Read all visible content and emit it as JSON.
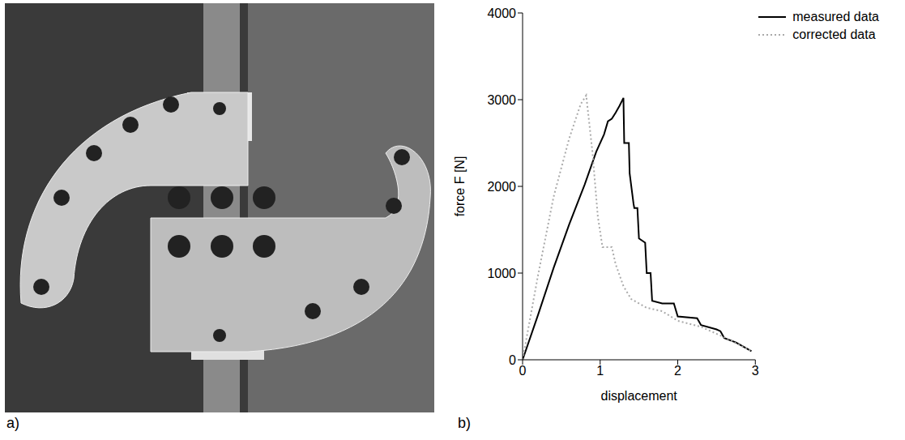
{
  "photo_panel": {
    "label": "a)"
  },
  "chart_panel_label": "b)",
  "chart_data": {
    "type": "line",
    "x_label": "displacement",
    "y_label": "force F [N]",
    "xlim": [
      0,
      3
    ],
    "xticks": [
      0,
      1,
      2,
      3
    ],
    "ylim": [
      0,
      4000
    ],
    "yticks": [
      0,
      1000,
      2000,
      3000,
      4000
    ],
    "grid": false,
    "legend": "upper right",
    "series": [
      {
        "name": "measured data",
        "color": "#000000",
        "line_style": "solid",
        "x": [
          0,
          0.2,
          0.4,
          0.6,
          0.8,
          0.95,
          1.05,
          1.1,
          1.15,
          1.2,
          1.25,
          1.3,
          1.31,
          1.37,
          1.38,
          1.43,
          1.44,
          1.48,
          1.5,
          1.58,
          1.6,
          1.65,
          1.67,
          1.8,
          1.95,
          2.0,
          2.25,
          2.3,
          2.5,
          2.55,
          2.6,
          2.75,
          2.95
        ],
        "values": [
          0,
          520,
          1060,
          1560,
          2020,
          2400,
          2600,
          2750,
          2780,
          2850,
          2930,
          3020,
          2500,
          2500,
          2150,
          1800,
          1750,
          1750,
          1400,
          1350,
          1000,
          1000,
          680,
          650,
          650,
          500,
          480,
          400,
          350,
          330,
          250,
          200,
          100
        ]
      },
      {
        "name": "corrected data",
        "color": "#aaaaaa",
        "line_style": "dotted",
        "x": [
          0,
          0.2,
          0.4,
          0.6,
          0.75,
          0.82,
          0.9,
          0.97,
          1.03,
          1.15,
          1.2,
          1.3,
          1.4,
          1.6,
          1.8,
          2.0,
          2.3,
          2.6,
          2.95
        ],
        "values": [
          0,
          980,
          1880,
          2550,
          2950,
          3050,
          2400,
          1650,
          1300,
          1300,
          1100,
          850,
          700,
          600,
          560,
          450,
          380,
          260,
          100
        ]
      }
    ]
  }
}
